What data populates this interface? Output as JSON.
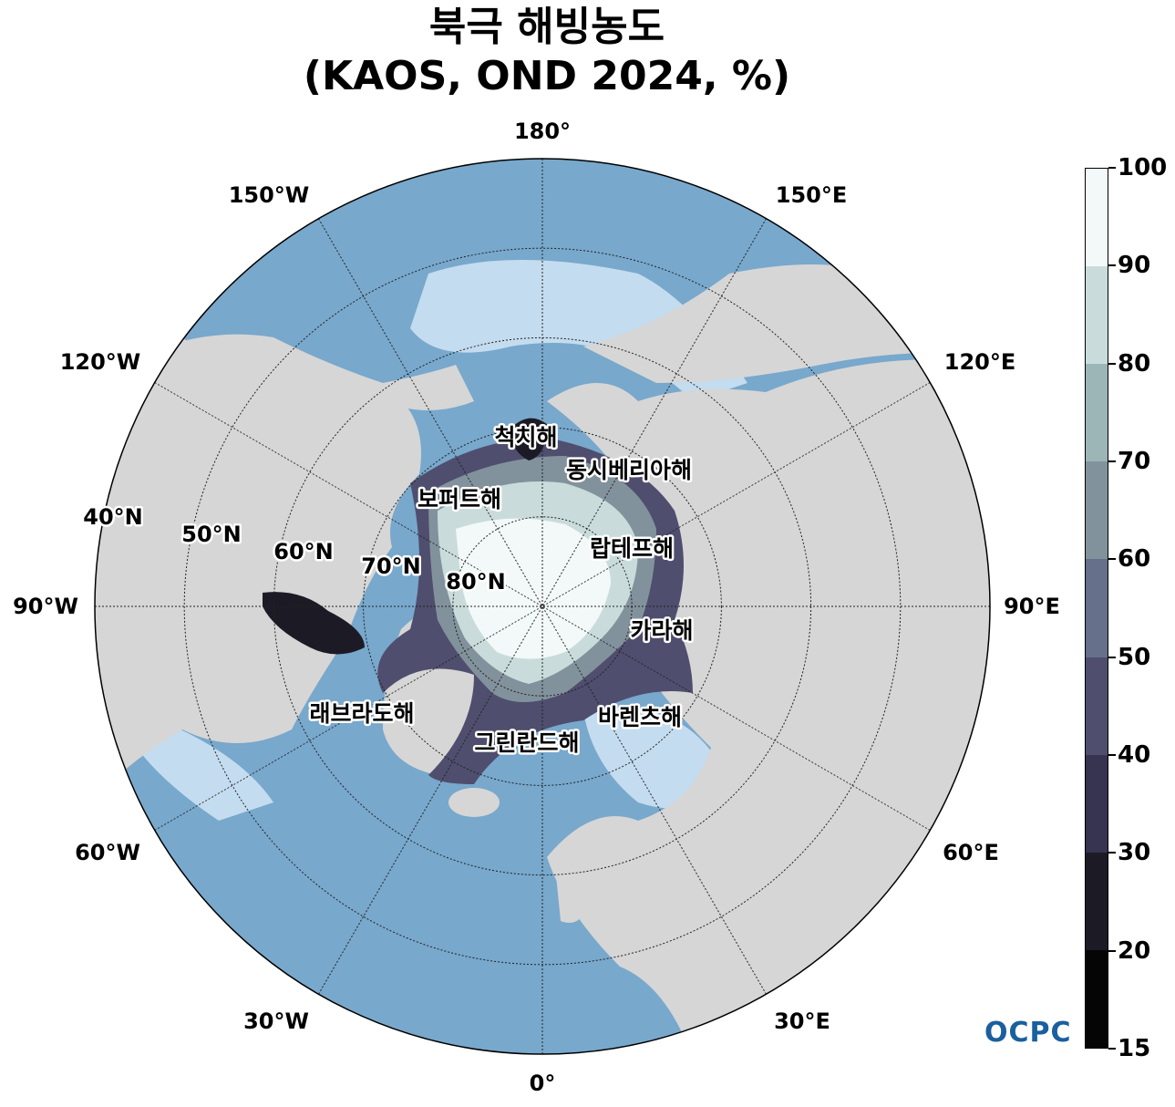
{
  "title": {
    "line1": "북극 해빙농도",
    "line2": "(KAOS, OND 2024, %)"
  },
  "colors": {
    "ocean": "#78a8cc",
    "land": "#d6d6d6",
    "coastal_shelf": "#c4dcef",
    "grid": "#222222"
  },
  "longitude_labels": [
    "180°",
    "150°E",
    "120°E",
    "90°E",
    "60°E",
    "30°E",
    "0°",
    "30°W",
    "60°W",
    "90°W",
    "120°W",
    "150°W"
  ],
  "latitude_labels": [
    "40°N",
    "50°N",
    "60°N",
    "70°N",
    "80°N"
  ],
  "sea_labels": [
    "척치해",
    "동시베리아해",
    "보퍼트해",
    "랍테프해",
    "카라해",
    "바렌츠해",
    "그린란드해",
    "래브라도해"
  ],
  "colorbar": {
    "ticks": [
      "100",
      "90",
      "80",
      "70",
      "60",
      "50",
      "40",
      "30",
      "20",
      "15"
    ],
    "colors": [
      "#f3f9f8",
      "#c9dcdb",
      "#9cb6b8",
      "#82929c",
      "#66708a",
      "#4f4e6e",
      "#363450",
      "#1c1b25",
      "#050505"
    ]
  },
  "logo": "OCPC"
}
